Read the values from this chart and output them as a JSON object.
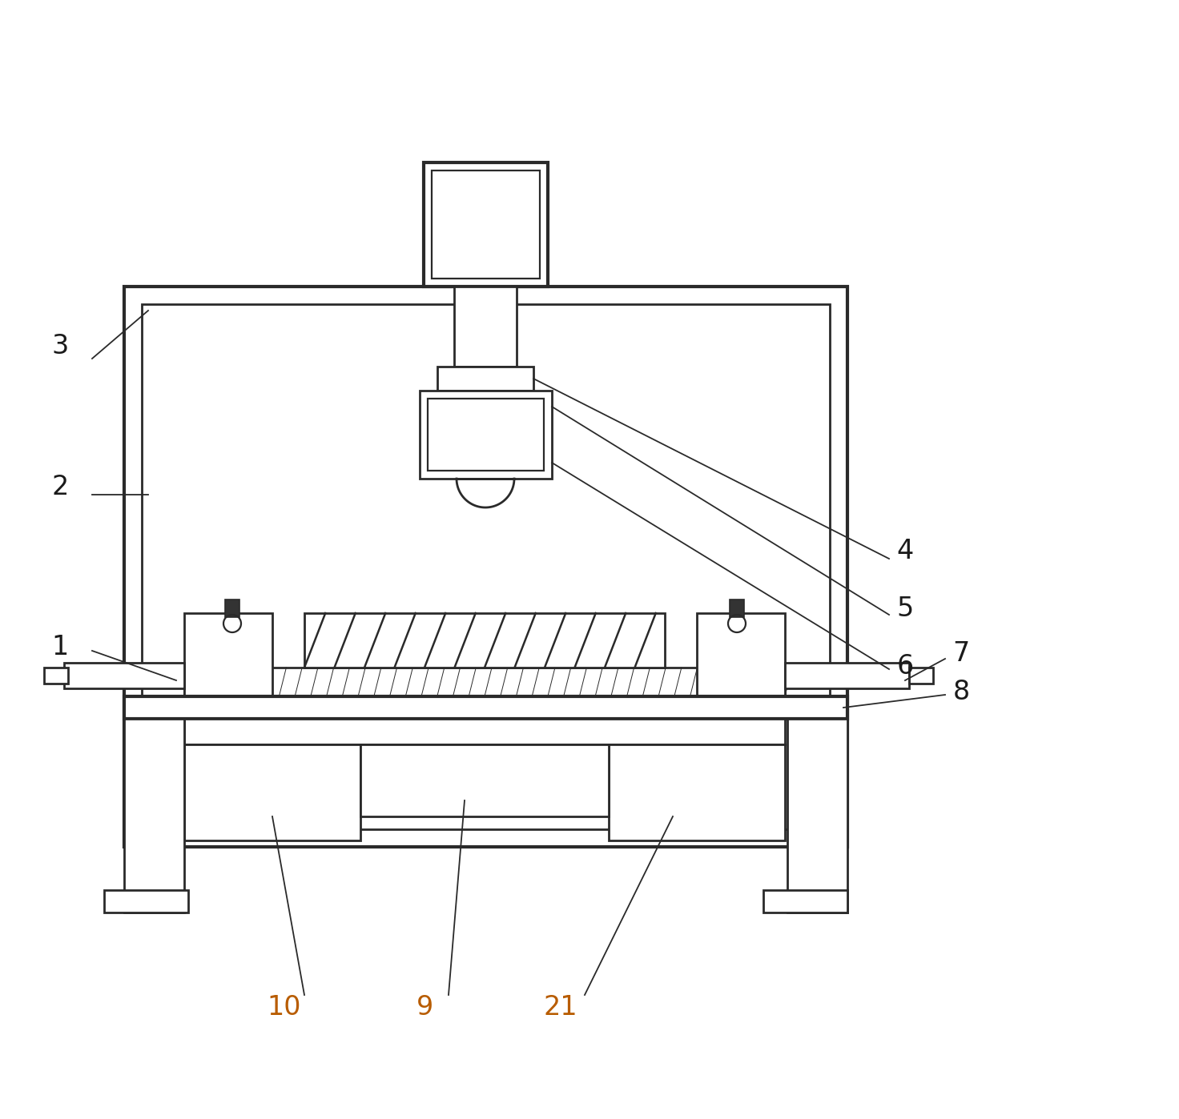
{
  "bg_color": "#ffffff",
  "line_color": "#2a2a2a",
  "label_color": "#1a1a1a",
  "lw": 2.0,
  "ann_lw": 1.3,
  "label_fontsize": 24
}
